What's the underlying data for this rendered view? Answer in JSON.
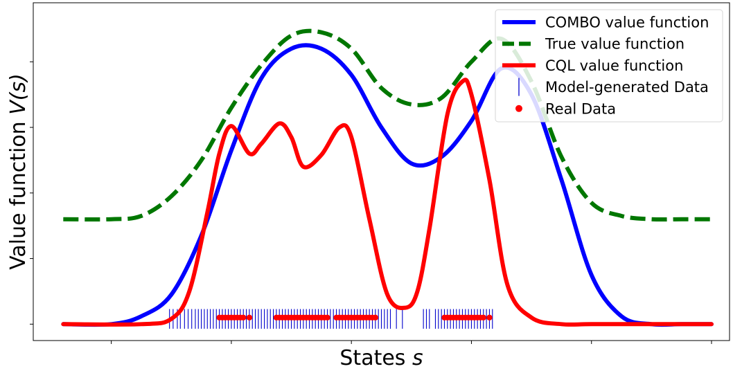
{
  "chart_data": {
    "type": "line",
    "title": "",
    "xlabel": "States",
    "xlabel_var": "s",
    "ylabel": "Value function",
    "ylabel_var": "V(s)",
    "xlim": [
      -3.3,
      8.3
    ],
    "ylim": [
      -0.25,
      4.9
    ],
    "xticks": [
      -2,
      0,
      2,
      4,
      6,
      8
    ],
    "yticks": [
      0,
      1,
      2,
      3,
      4,
      5
    ],
    "tick_labels_shown": false,
    "grid": false,
    "legend_position": "top-right",
    "series": [
      {
        "name": "COMBO value function",
        "kind": "line",
        "style": "solid",
        "color": "#0000ff",
        "x": [
          -2.8,
          -2.0,
          -1.5,
          -1.0,
          -0.5,
          0.0,
          0.5,
          1.0,
          1.5,
          2.0,
          2.5,
          3.0,
          3.5,
          4.0,
          4.5,
          5.0,
          5.5,
          6.0,
          6.5,
          7.0,
          7.5,
          8.0
        ],
        "y": [
          0.0,
          0.0,
          0.12,
          0.45,
          1.35,
          2.65,
          3.75,
          4.2,
          4.2,
          3.8,
          3.0,
          2.45,
          2.55,
          3.1,
          3.9,
          3.5,
          2.2,
          0.75,
          0.12,
          0.0,
          0.0,
          0.0
        ]
      },
      {
        "name": "True value function",
        "kind": "line",
        "style": "dashed",
        "color": "#007700",
        "x": [
          -2.8,
          -2.0,
          -1.5,
          -1.0,
          -0.5,
          0.0,
          0.5,
          1.0,
          1.5,
          2.0,
          2.5,
          3.0,
          3.5,
          4.0,
          4.5,
          5.0,
          5.5,
          6.0,
          6.5,
          7.0,
          7.5,
          8.0
        ],
        "y": [
          1.6,
          1.6,
          1.65,
          1.95,
          2.5,
          3.3,
          3.95,
          4.4,
          4.45,
          4.2,
          3.6,
          3.35,
          3.45,
          4.0,
          4.35,
          3.7,
          2.55,
          1.85,
          1.65,
          1.6,
          1.6,
          1.6
        ]
      },
      {
        "name": "CQL value function",
        "kind": "line",
        "style": "solid",
        "color": "#ff0000",
        "x": [
          -2.8,
          -1.5,
          -1.0,
          -0.7,
          -0.4,
          -0.2,
          0.0,
          0.3,
          0.5,
          0.8,
          1.0,
          1.2,
          1.5,
          1.8,
          2.0,
          2.3,
          2.6,
          2.9,
          3.1,
          3.3,
          3.6,
          3.85,
          4.0,
          4.3,
          4.6,
          5.0,
          5.5,
          6.0,
          7.0,
          8.0
        ],
        "y": [
          0.0,
          0.0,
          0.08,
          0.5,
          1.7,
          2.6,
          3.02,
          2.6,
          2.75,
          3.06,
          2.85,
          2.4,
          2.58,
          3.0,
          2.85,
          1.6,
          0.45,
          0.25,
          0.5,
          1.45,
          3.2,
          3.7,
          3.5,
          2.2,
          0.6,
          0.1,
          0.0,
          0.0,
          0.0,
          0.0
        ]
      },
      {
        "name": "Model-generated Data",
        "kind": "rug",
        "color": "#0000cc",
        "y_base": 0.08,
        "height": 0.3,
        "x": [
          -1.03,
          -0.97,
          -0.9,
          -0.85,
          -0.78,
          -0.72,
          -0.66,
          -0.6,
          -0.55,
          -0.5,
          -0.45,
          -0.4,
          -0.35,
          -0.3,
          -0.25,
          -0.2,
          -0.15,
          -0.1,
          -0.05,
          0.0,
          0.05,
          0.1,
          0.15,
          0.2,
          0.25,
          0.3,
          0.35,
          0.4,
          0.45,
          0.5,
          0.55,
          0.6,
          0.65,
          0.7,
          0.75,
          0.8,
          0.85,
          0.9,
          0.95,
          1.0,
          1.05,
          1.1,
          1.15,
          1.2,
          1.25,
          1.3,
          1.35,
          1.4,
          1.45,
          1.5,
          1.55,
          1.6,
          1.65,
          1.7,
          1.75,
          1.8,
          1.85,
          1.9,
          1.95,
          2.0,
          2.05,
          2.1,
          2.15,
          2.2,
          2.25,
          2.3,
          2.35,
          2.4,
          2.45,
          2.5,
          2.55,
          2.6,
          2.65,
          2.75,
          2.85,
          3.2,
          3.25,
          3.3,
          3.4,
          3.45,
          3.5,
          3.55,
          3.6,
          3.65,
          3.7,
          3.75,
          3.8,
          3.85,
          3.9,
          3.95,
          4.0,
          4.05,
          4.1,
          4.15,
          4.2,
          4.25,
          4.3,
          4.35
        ]
      },
      {
        "name": "Real Data",
        "kind": "points",
        "color": "#ff0000",
        "y": 0.1,
        "x": [
          -0.2,
          -0.15,
          -0.1,
          -0.05,
          0.0,
          0.05,
          0.1,
          0.15,
          0.2,
          0.3,
          0.75,
          0.8,
          0.85,
          0.9,
          0.95,
          1.0,
          1.05,
          1.1,
          1.15,
          1.2,
          1.25,
          1.3,
          1.35,
          1.4,
          1.45,
          1.5,
          1.55,
          1.6,
          1.75,
          1.8,
          1.85,
          1.9,
          1.95,
          2.0,
          2.05,
          2.1,
          2.15,
          2.2,
          2.25,
          2.3,
          2.35,
          2.4,
          3.55,
          3.6,
          3.65,
          3.7,
          3.75,
          3.8,
          3.85,
          3.9,
          3.95,
          4.0,
          4.05,
          4.1,
          4.15,
          4.2,
          4.3
        ]
      }
    ]
  }
}
